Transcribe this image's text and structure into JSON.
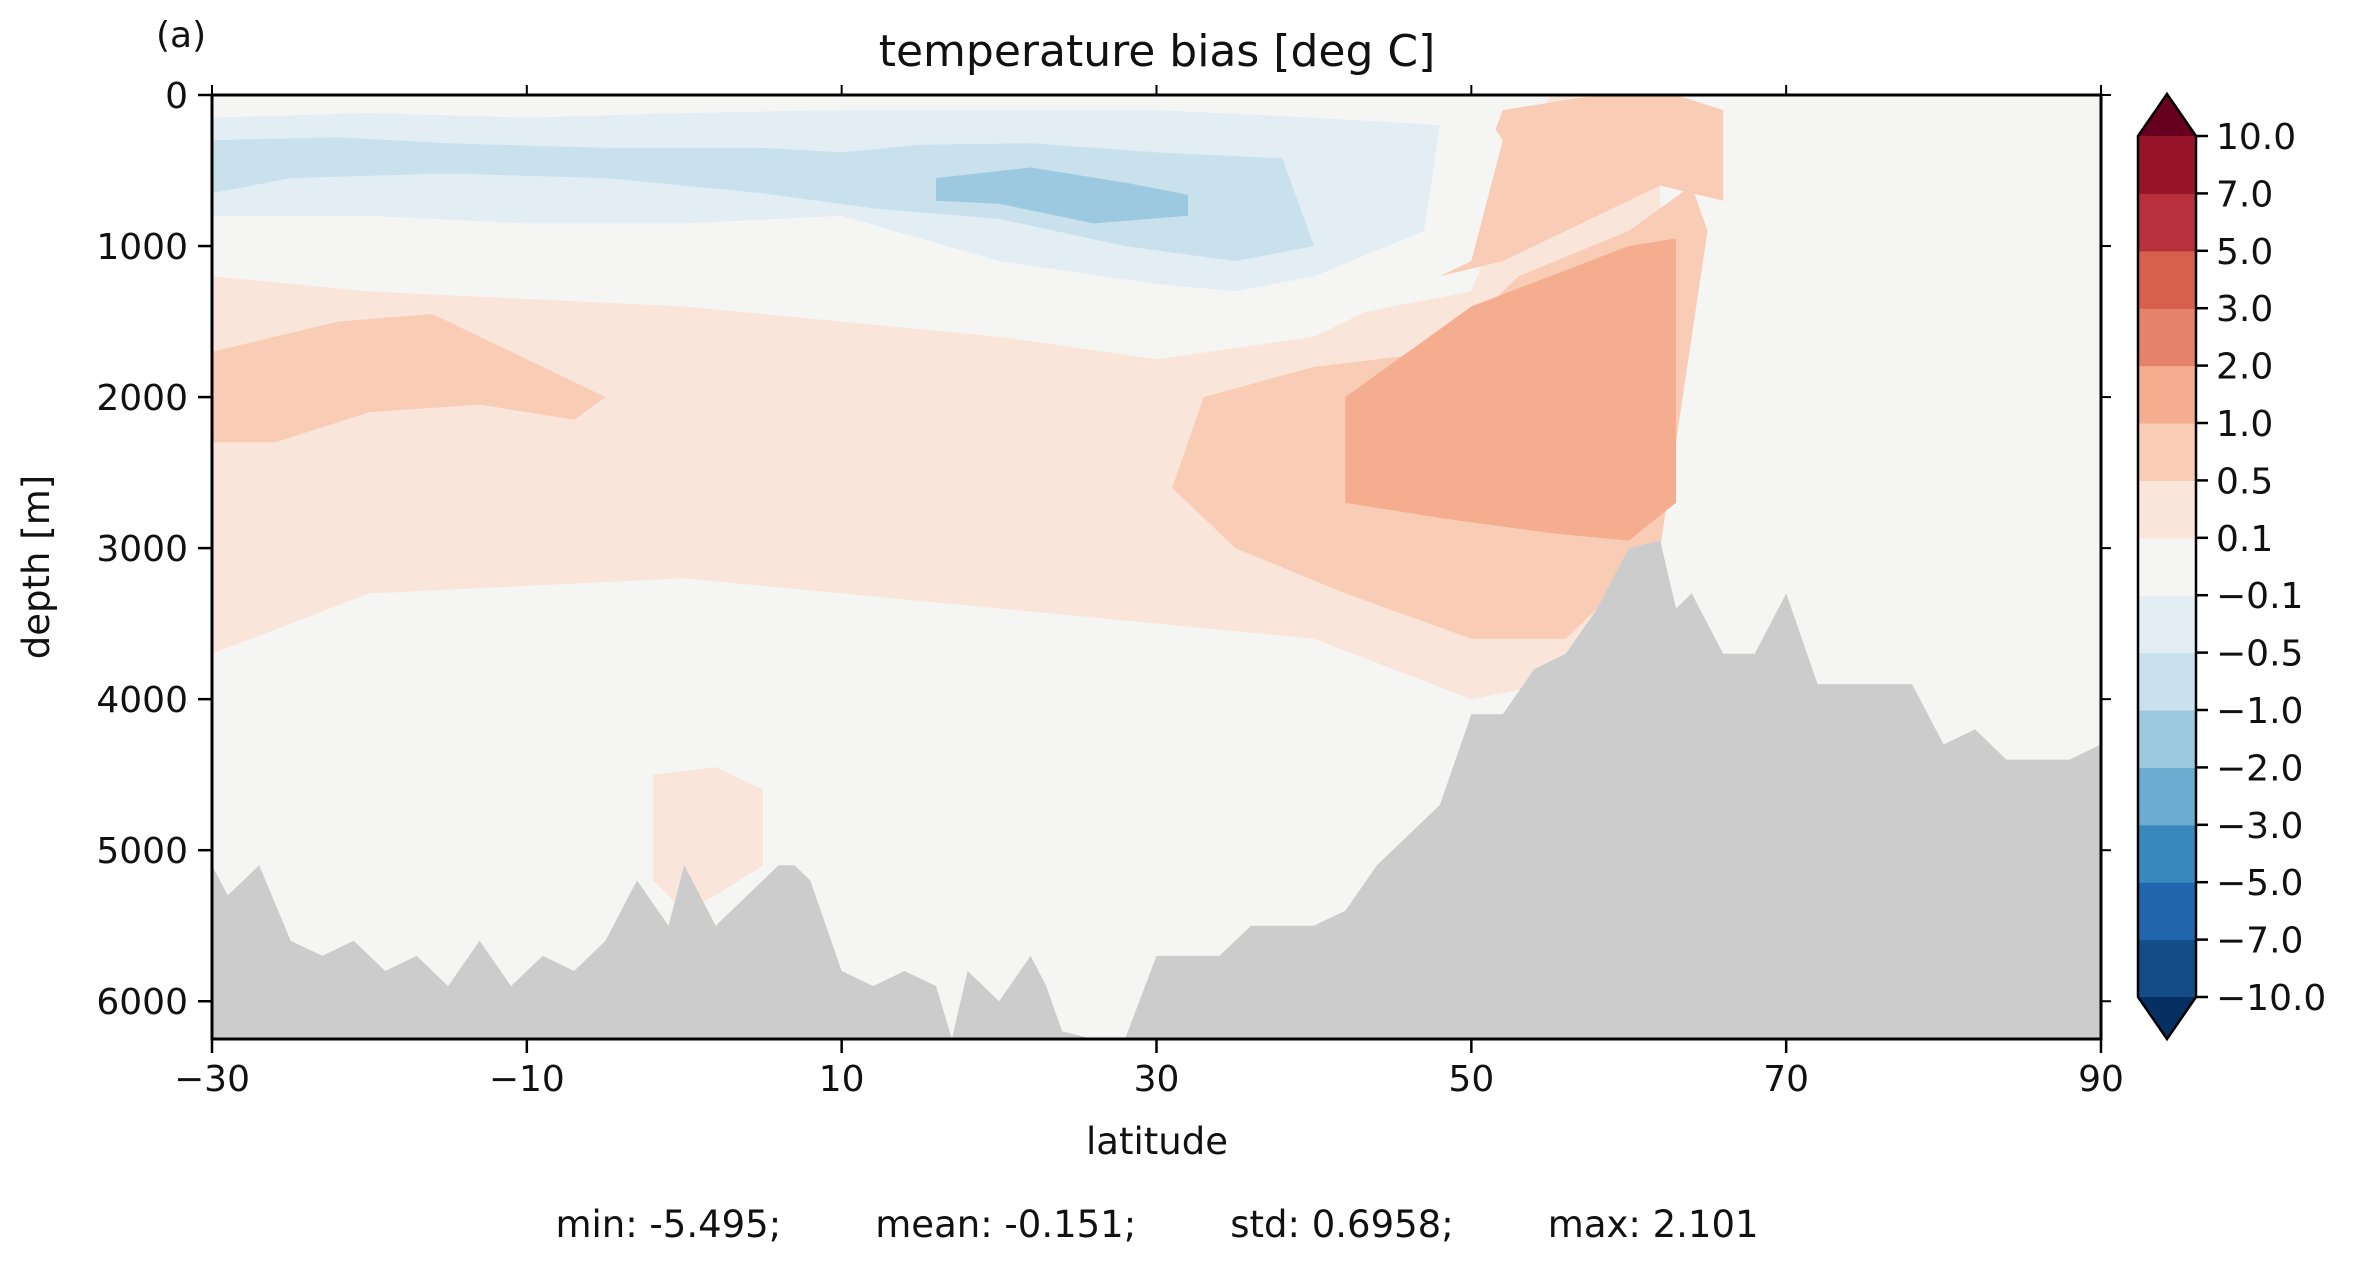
{
  "panel_label": "(a)",
  "stats": "min: -5.495;        mean: -0.151;        std: 0.6958;        max: 2.101",
  "chart_data": {
    "type": "contourf",
    "title": "temperature bias [deg C]",
    "xlabel": "latitude",
    "ylabel": "depth [m]",
    "xlim": [
      -30,
      90
    ],
    "ylim": [
      6250,
      0
    ],
    "y_inverted": true,
    "x_ticks": [
      -30,
      -10,
      10,
      30,
      50,
      70,
      90
    ],
    "x_tick_labels": [
      "−30",
      "−10",
      "10",
      "30",
      "50",
      "70",
      "90"
    ],
    "y_ticks": [
      0,
      1000,
      2000,
      3000,
      4000,
      5000,
      6000
    ],
    "y_tick_labels": [
      "0",
      "1000",
      "2000",
      "3000",
      "4000",
      "5000",
      "6000"
    ],
    "colorbar": {
      "extend": "both",
      "levels": [
        -10.0,
        -7.0,
        -5.0,
        -3.0,
        -2.0,
        -1.0,
        -0.5,
        -0.1,
        0.1,
        0.5,
        1.0,
        2.0,
        3.0,
        5.0,
        7.0,
        10.0
      ],
      "tick_labels": [
        "−10.0",
        "−7.0",
        "−5.0",
        "−3.0",
        "−2.0",
        "−1.0",
        "−0.5",
        "−0.1",
        "0.1",
        "0.5",
        "1.0",
        "2.0",
        "3.0",
        "5.0",
        "7.0",
        "10.0"
      ],
      "colors": [
        "#053061",
        "#134c87",
        "#2166ac",
        "#3a87bd",
        "#6cacd1",
        "#9cc9e0",
        "#c9e0ed",
        "#e2edf4",
        "#f5f5f4",
        "#fae5da",
        "#f9ccb5",
        "#f4ad8f",
        "#e5826b",
        "#d6604d",
        "#b8303d",
        "#981529",
        "#67001f"
      ]
    },
    "land_color": "#cccccc",
    "bottom_profile": {
      "lat": [
        -30,
        -29,
        -27,
        -25,
        -23,
        -21,
        -19,
        -17,
        -15,
        -13,
        -11,
        -9,
        -7,
        -5,
        -3,
        -1,
        0,
        2,
        4,
        6,
        7,
        8,
        10,
        12,
        14,
        16,
        17,
        18,
        20,
        22,
        23,
        24,
        26,
        28,
        30,
        32,
        34,
        36,
        38,
        40,
        42,
        44,
        46,
        48,
        50,
        52,
        54,
        56,
        58,
        60,
        62,
        63,
        64,
        66,
        68,
        70,
        72,
        74,
        76,
        78,
        80,
        82,
        84,
        86,
        88,
        90
      ],
      "depth": [
        5100,
        5300,
        5100,
        5600,
        5700,
        5600,
        5800,
        5700,
        5900,
        5600,
        5900,
        5700,
        5800,
        5600,
        5200,
        5500,
        5100,
        5500,
        5300,
        5100,
        5100,
        5200,
        5800,
        5900,
        5800,
        5900,
        6250,
        5800,
        6000,
        5700,
        5900,
        6200,
        6250,
        6250,
        5700,
        5700,
        5700,
        5500,
        5500,
        5500,
        5400,
        5100,
        4900,
        4700,
        4100,
        4100,
        3800,
        3700,
        3400,
        3000,
        2950,
        3400,
        3300,
        3700,
        3700,
        3300,
        3900,
        3900,
        3900,
        3900,
        4300,
        4200,
        4400,
        4400,
        4400,
        4300
      ]
    },
    "field_regions": [
      {
        "level": 0.1,
        "desc": "positive upper/mid layer",
        "lat": [
          -30,
          -20,
          0,
          20,
          40,
          50,
          55,
          62,
          62,
          55,
          50,
          40,
          20,
          0,
          -20,
          -30
        ],
        "depth": [
          1200,
          1300,
          1400,
          1600,
          1500,
          1300,
          0,
          0,
          2900,
          3900,
          4000,
          3600,
          3400,
          3200,
          3300,
          3700
        ]
      },
      {
        "level": 0.5,
        "desc": "south band",
        "lat": [
          -30,
          -22,
          -16,
          -10,
          -5,
          -7,
          -13,
          -20,
          -26,
          -30
        ],
        "depth": [
          1700,
          1500,
          1450,
          1750,
          2000,
          2150,
          2050,
          2100,
          2300,
          2300
        ]
      },
      {
        "level": 0.5,
        "desc": "north mid",
        "lat": [
          33,
          40,
          48,
          53,
          60,
          64,
          65,
          62,
          56,
          50,
          42,
          35,
          31
        ],
        "depth": [
          2000,
          1800,
          1700,
          1200,
          900,
          600,
          900,
          3000,
          3600,
          3600,
          3300,
          3000,
          2600
        ]
      },
      {
        "level": 1.0,
        "desc": "north core",
        "lat": [
          42,
          50,
          55,
          60,
          63,
          63,
          60,
          55,
          48,
          42
        ],
        "depth": [
          2000,
          1400,
          1200,
          1000,
          950,
          2700,
          2950,
          2900,
          2800,
          2700
        ]
      },
      {
        "level": 0.5,
        "desc": "north shallow patch",
        "lat": [
          48,
          52,
          58,
          63,
          66,
          66,
          62,
          58,
          52,
          48
        ],
        "depth": [
          1200,
          100,
          0,
          0,
          100,
          700,
          600,
          800,
          1100,
          1200
        ]
      },
      {
        "level": -0.1,
        "desc": "upper ocean cool",
        "lat": [
          -30,
          -10,
          10,
          30,
          45,
          50,
          52,
          50,
          40,
          30,
          20,
          10,
          0,
          -10,
          -20,
          -30
        ],
        "depth": [
          0,
          0,
          0,
          0,
          0,
          0,
          300,
          1100,
          1600,
          1750,
          1600,
          1300,
          1200,
          1200,
          1150,
          1200
        ]
      },
      {
        "level": -0.5,
        "desc": "upper cool band",
        "lat": [
          -30,
          -20,
          -10,
          0,
          10,
          20,
          30,
          40,
          48,
          47,
          40,
          35,
          30,
          20,
          10,
          0,
          -10,
          -20,
          -30
        ],
        "depth": [
          150,
          120,
          150,
          120,
          100,
          100,
          100,
          150,
          200,
          900,
          1200,
          1300,
          1250,
          1100,
          800,
          850,
          850,
          800,
          800
        ]
      },
      {
        "level": -1.0,
        "desc": "upper core",
        "lat": [
          -30,
          -22,
          -15,
          -5,
          5,
          10,
          15,
          22,
          30,
          38,
          40,
          35,
          28,
          20,
          12,
          5,
          -5,
          -15,
          -25,
          -30
        ],
        "depth": [
          300,
          280,
          320,
          350,
          350,
          380,
          330,
          320,
          380,
          420,
          1000,
          1100,
          1000,
          820,
          750,
          650,
          550,
          520,
          550,
          650
        ]
      },
      {
        "level": -2.0,
        "desc": "strongest upper",
        "lat": [
          16,
          22,
          28,
          32,
          32,
          26,
          20,
          16
        ],
        "depth": [
          550,
          480,
          580,
          660,
          800,
          850,
          720,
          700
        ]
      },
      {
        "level": -0.1,
        "desc": "deep south",
        "lat": [
          -30,
          -20,
          -10,
          0,
          5,
          8,
          12,
          20,
          30,
          38,
          44,
          44,
          40,
          33,
          28,
          25,
          22,
          18,
          15,
          10,
          5,
          0,
          -5,
          -15,
          -25,
          -30
        ],
        "depth": [
          3850,
          3900,
          3950,
          4000,
          4100,
          4200,
          4200,
          4100,
          4050,
          4050,
          4200,
          4800,
          5200,
          5600,
          6250,
          6250,
          5800,
          5300,
          5000,
          5000,
          5300,
          5000,
          5200,
          5500,
          5600,
          5100
        ]
      },
      {
        "level": -0.1,
        "desc": "north arctic",
        "lat": [
          70,
          74,
          78,
          82,
          86,
          90,
          90,
          86,
          82,
          79,
          76,
          72,
          70
        ],
        "depth": [
          200,
          150,
          250,
          180,
          200,
          200,
          900,
          1000,
          1200,
          1600,
          1200,
          1000,
          600
        ]
      },
      {
        "level": 0.1,
        "desc": "eq patch",
        "lat": [
          -2,
          2,
          5,
          5,
          2,
          0,
          -2
        ],
        "depth": [
          4500,
          4450,
          4600,
          5100,
          5300,
          5400,
          5200
        ]
      }
    ]
  }
}
